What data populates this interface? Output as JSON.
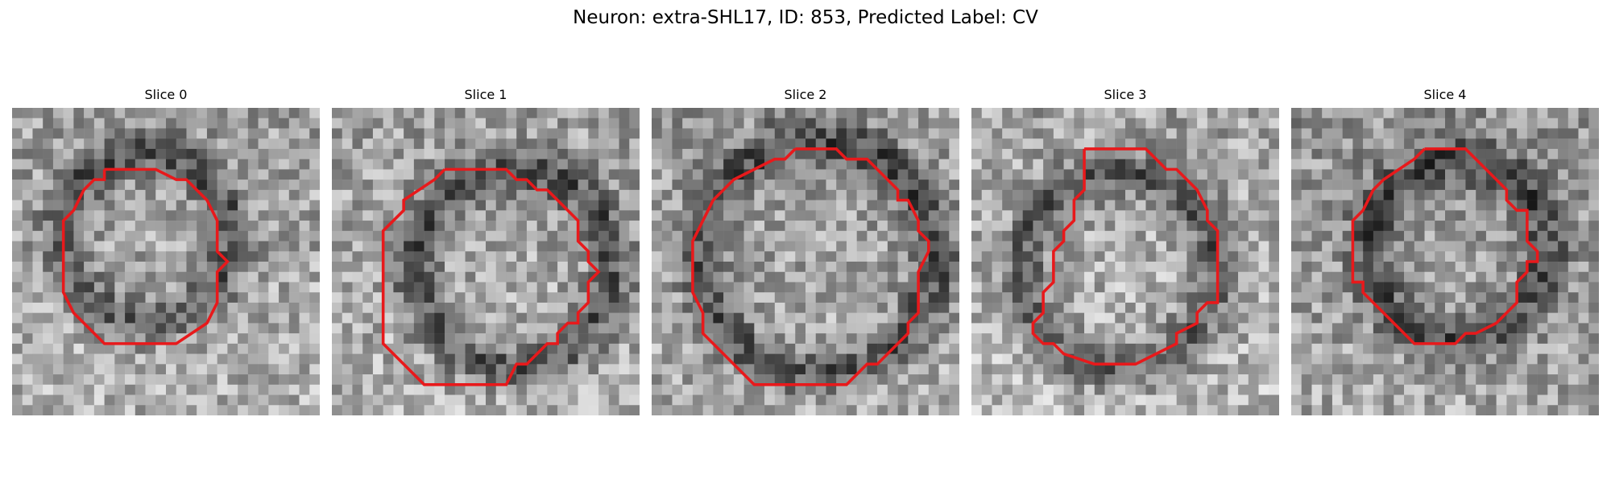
{
  "figure": {
    "title": "Neuron: extra-SHL17, ID: 853, Predicted Label: CV",
    "contour_color": "#e8191b"
  },
  "panels": [
    {
      "title": "Slice 0",
      "seed": 11,
      "brightness": 0.0
    },
    {
      "title": "Slice 1",
      "seed": 23,
      "brightness": 0.0
    },
    {
      "title": "Slice 2",
      "seed": 37,
      "brightness": -0.02
    },
    {
      "title": "Slice 3",
      "seed": 41,
      "brightness": 0.02
    },
    {
      "title": "Slice 4",
      "seed": 59,
      "brightness": -0.04
    }
  ]
}
